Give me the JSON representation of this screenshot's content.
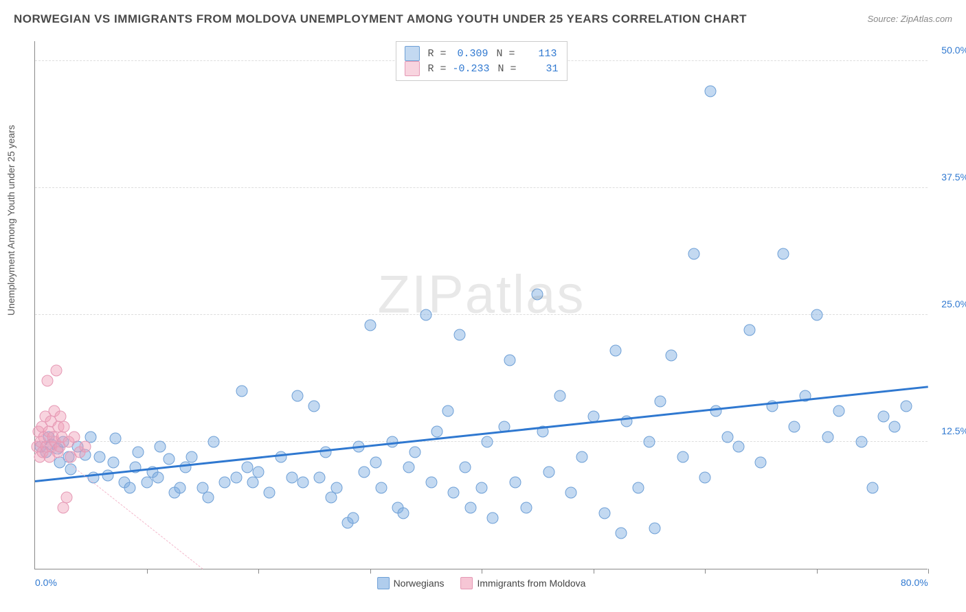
{
  "title": "NORWEGIAN VS IMMIGRANTS FROM MOLDOVA UNEMPLOYMENT AMONG YOUTH UNDER 25 YEARS CORRELATION CHART",
  "source": "Source: ZipAtlas.com",
  "ylabel": "Unemployment Among Youth under 25 years",
  "watermark_a": "ZIP",
  "watermark_b": "atlas",
  "chart": {
    "type": "scatter",
    "xlim": [
      0,
      80
    ],
    "ylim": [
      0,
      52
    ],
    "x_ticks_minor": [
      10,
      20,
      30,
      40,
      50,
      60,
      70,
      80
    ],
    "x_ticks_label": [
      {
        "v": 0,
        "label": "0.0%"
      },
      {
        "v": 80,
        "label": "80.0%"
      }
    ],
    "y_ticks": [
      {
        "v": 12.5,
        "label": "12.5%"
      },
      {
        "v": 25.0,
        "label": "25.0%"
      },
      {
        "v": 37.5,
        "label": "37.5%"
      },
      {
        "v": 50.0,
        "label": "50.0%"
      }
    ],
    "background_color": "#ffffff",
    "grid_color": "#dddddd",
    "marker_size": 17,
    "series": [
      {
        "name": "Norwegians",
        "fill": "rgba(123,171,225,0.45)",
        "stroke": "#6d9fd6",
        "trend_color": "#2f78d0",
        "trend_width": 3,
        "trend_dash": "solid",
        "R": "0.309",
        "N": "113",
        "stat_color": "#2f78d0",
        "trend": {
          "x1": 0,
          "y1": 8.5,
          "x2": 80,
          "y2": 17.8
        },
        "points": [
          [
            0.5,
            12.0
          ],
          [
            1.0,
            11.5
          ],
          [
            1.2,
            13.0
          ],
          [
            1.5,
            12.2
          ],
          [
            2.0,
            11.8
          ],
          [
            2.2,
            10.5
          ],
          [
            2.5,
            12.5
          ],
          [
            3.0,
            11.0
          ],
          [
            3.2,
            9.8
          ],
          [
            3.8,
            12.0
          ],
          [
            4.5,
            11.2
          ],
          [
            5.0,
            13.0
          ],
          [
            5.2,
            9.0
          ],
          [
            5.8,
            11.0
          ],
          [
            6.5,
            9.2
          ],
          [
            7.0,
            10.5
          ],
          [
            7.2,
            12.8
          ],
          [
            8.0,
            8.5
          ],
          [
            8.5,
            8.0
          ],
          [
            9.0,
            10.0
          ],
          [
            9.2,
            11.5
          ],
          [
            10.0,
            8.5
          ],
          [
            10.5,
            9.5
          ],
          [
            11.0,
            9.0
          ],
          [
            11.2,
            12.0
          ],
          [
            12.0,
            10.8
          ],
          [
            12.5,
            7.5
          ],
          [
            13.0,
            8.0
          ],
          [
            13.5,
            10.0
          ],
          [
            14.0,
            11.0
          ],
          [
            15.0,
            8.0
          ],
          [
            15.5,
            7.0
          ],
          [
            16.0,
            12.5
          ],
          [
            17.0,
            8.5
          ],
          [
            18.0,
            9.0
          ],
          [
            18.5,
            17.5
          ],
          [
            19.0,
            10.0
          ],
          [
            19.5,
            8.5
          ],
          [
            20.0,
            9.5
          ],
          [
            21.0,
            7.5
          ],
          [
            22.0,
            11.0
          ],
          [
            23.0,
            9.0
          ],
          [
            23.5,
            17.0
          ],
          [
            24.0,
            8.5
          ],
          [
            25.0,
            16.0
          ],
          [
            25.5,
            9.0
          ],
          [
            26.0,
            11.5
          ],
          [
            26.5,
            7.0
          ],
          [
            27.0,
            8.0
          ],
          [
            28.0,
            4.5
          ],
          [
            28.5,
            5.0
          ],
          [
            29.0,
            12.0
          ],
          [
            29.5,
            9.5
          ],
          [
            30.0,
            24.0
          ],
          [
            30.5,
            10.5
          ],
          [
            31.0,
            8.0
          ],
          [
            32.0,
            12.5
          ],
          [
            32.5,
            6.0
          ],
          [
            33.0,
            5.5
          ],
          [
            33.5,
            10.0
          ],
          [
            34.0,
            11.5
          ],
          [
            35.0,
            25.0
          ],
          [
            35.5,
            8.5
          ],
          [
            36.0,
            13.5
          ],
          [
            37.0,
            15.5
          ],
          [
            37.5,
            7.5
          ],
          [
            38.0,
            23.0
          ],
          [
            38.5,
            10.0
          ],
          [
            39.0,
            6.0
          ],
          [
            40.0,
            8.0
          ],
          [
            40.5,
            12.5
          ],
          [
            41.0,
            5.0
          ],
          [
            42.0,
            14.0
          ],
          [
            42.5,
            20.5
          ],
          [
            43.0,
            8.5
          ],
          [
            44.0,
            6.0
          ],
          [
            45.0,
            27.0
          ],
          [
            45.5,
            13.5
          ],
          [
            46.0,
            9.5
          ],
          [
            47.0,
            17.0
          ],
          [
            48.0,
            7.5
          ],
          [
            49.0,
            11.0
          ],
          [
            50.0,
            15.0
          ],
          [
            51.0,
            5.5
          ],
          [
            52.0,
            21.5
          ],
          [
            52.5,
            3.5
          ],
          [
            53.0,
            14.5
          ],
          [
            54.0,
            8.0
          ],
          [
            55.0,
            12.5
          ],
          [
            55.5,
            4.0
          ],
          [
            56.0,
            16.5
          ],
          [
            57.0,
            21.0
          ],
          [
            58.0,
            11.0
          ],
          [
            59.0,
            31.0
          ],
          [
            60.0,
            9.0
          ],
          [
            60.5,
            47.0
          ],
          [
            61.0,
            15.5
          ],
          [
            62.0,
            13.0
          ],
          [
            63.0,
            12.0
          ],
          [
            64.0,
            23.5
          ],
          [
            65.0,
            10.5
          ],
          [
            66.0,
            16.0
          ],
          [
            67.0,
            31.0
          ],
          [
            68.0,
            14.0
          ],
          [
            69.0,
            17.0
          ],
          [
            70.0,
            25.0
          ],
          [
            71.0,
            13.0
          ],
          [
            72.0,
            15.5
          ],
          [
            74.0,
            12.5
          ],
          [
            75.0,
            8.0
          ],
          [
            76.0,
            15.0
          ],
          [
            77.0,
            14.0
          ],
          [
            78.0,
            16.0
          ]
        ]
      },
      {
        "name": "Immigrants from Moldova",
        "fill": "rgba(240,160,185,0.45)",
        "stroke": "#e598b4",
        "trend_color": "#f4b9cc",
        "trend_width": 1,
        "trend_dash": "dashed",
        "R": "-0.233",
        "N": "31",
        "stat_color": "#2f78d0",
        "trend": {
          "x1": 0,
          "y1": 13.0,
          "x2": 15,
          "y2": 0
        },
        "points": [
          [
            0.2,
            12.0
          ],
          [
            0.3,
            13.5
          ],
          [
            0.4,
            11.0
          ],
          [
            0.5,
            12.5
          ],
          [
            0.6,
            14.0
          ],
          [
            0.7,
            11.5
          ],
          [
            0.8,
            13.0
          ],
          [
            0.9,
            15.0
          ],
          [
            1.0,
            12.0
          ],
          [
            1.1,
            18.5
          ],
          [
            1.2,
            13.5
          ],
          [
            1.3,
            11.0
          ],
          [
            1.4,
            14.5
          ],
          [
            1.5,
            12.0
          ],
          [
            1.6,
            13.0
          ],
          [
            1.7,
            15.5
          ],
          [
            1.8,
            12.5
          ],
          [
            1.9,
            19.5
          ],
          [
            2.0,
            11.5
          ],
          [
            2.1,
            14.0
          ],
          [
            2.2,
            12.0
          ],
          [
            2.3,
            15.0
          ],
          [
            2.4,
            13.0
          ],
          [
            2.5,
            6.0
          ],
          [
            2.6,
            14.0
          ],
          [
            2.8,
            7.0
          ],
          [
            3.0,
            12.5
          ],
          [
            3.2,
            11.0
          ],
          [
            3.5,
            13.0
          ],
          [
            4.0,
            11.5
          ],
          [
            4.5,
            12.0
          ]
        ]
      }
    ],
    "legend_bottom": [
      {
        "label": "Norwegians",
        "fill": "rgba(123,171,225,0.6)",
        "stroke": "#6d9fd6"
      },
      {
        "label": "Immigrants from Moldova",
        "fill": "rgba(240,160,185,0.6)",
        "stroke": "#e598b4"
      }
    ]
  }
}
